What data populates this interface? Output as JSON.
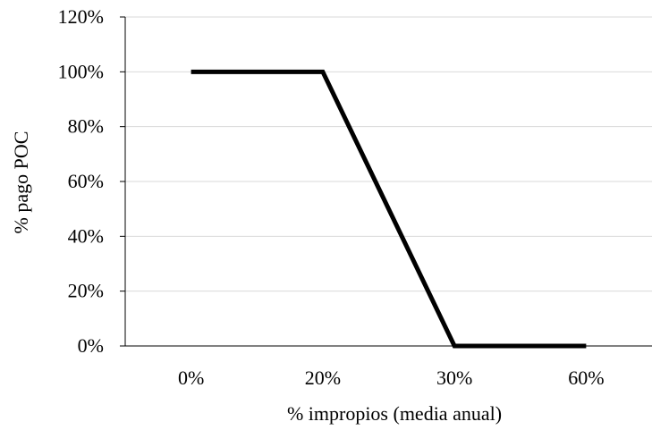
{
  "chart_data": {
    "type": "line",
    "categories": [
      "0%",
      "20%",
      "30%",
      "60%"
    ],
    "series": [
      {
        "values": [
          100,
          100,
          0,
          0
        ]
      }
    ],
    "xlabel": "% impropios (media anual)",
    "ylabel": "% pago POC",
    "ylim": [
      0,
      120
    ],
    "yticks": [
      0,
      20,
      40,
      60,
      80,
      100,
      120
    ],
    "ytick_labels": [
      "0%",
      "20%",
      "40%",
      "60%",
      "80%",
      "100%",
      "120%"
    ],
    "grid": "horizontal",
    "legend": "none",
    "colors": {
      "line": "#000000",
      "grid": "#d9d9d9",
      "axis": "#000000"
    }
  }
}
